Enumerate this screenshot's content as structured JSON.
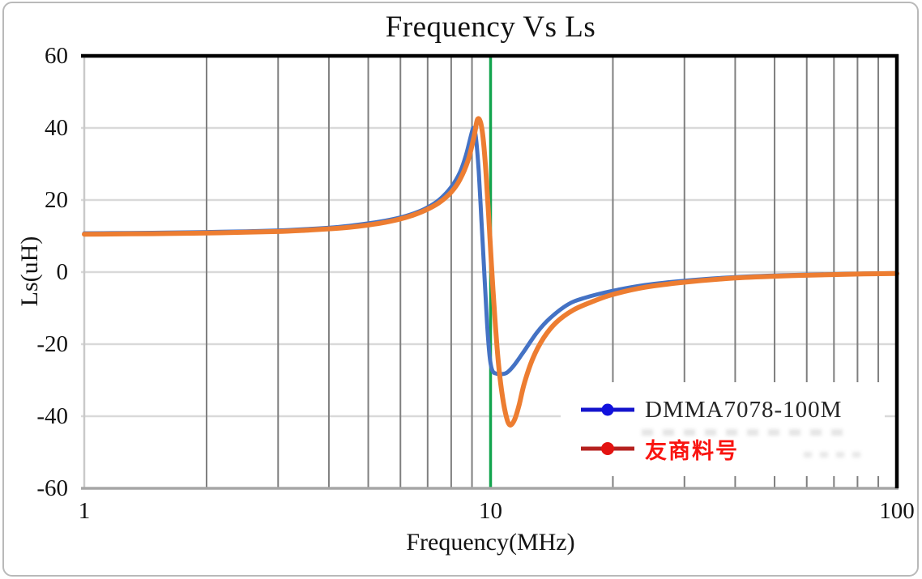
{
  "title": "Frequency Vs Ls",
  "colors": {
    "series_blue": "#4472c4",
    "series_orange": "#ed7d31",
    "marker_line_green": "#13a44e",
    "minor_gridline": "#7f7f7f",
    "major_gridline_light": "#d9d9d9",
    "left_edge": "#c9c9c9",
    "bottom_axis": "#a6a6a6",
    "top_right_border": "#000000"
  },
  "chart_data": {
    "type": "line",
    "title": "Frequency Vs Ls",
    "xlabel": "Frequency(MHz)",
    "ylabel": "Ls(uH)",
    "x_scale": "log",
    "xlim": [
      1,
      100
    ],
    "ylim": [
      -60,
      60
    ],
    "x_ticks": [
      "1",
      "10",
      "100"
    ],
    "x_tick_values": [
      1,
      10,
      100
    ],
    "y_ticks": [
      "60",
      "40",
      "20",
      "0",
      "-20",
      "-40",
      "-60"
    ],
    "y_tick_values": [
      60,
      40,
      20,
      0,
      -20,
      -40,
      -60
    ],
    "x_minor_gridlines": [
      2,
      3,
      4,
      5,
      6,
      7,
      8,
      9,
      20,
      30,
      40,
      50,
      60,
      70,
      80,
      90
    ],
    "y_gridlines": [
      40,
      20,
      0,
      -20,
      -40
    ],
    "grid": "on",
    "marker_line_x": 10,
    "legend_position": "lower-right",
    "legend": [
      {
        "label": "DMMA7078-100M",
        "line_color": "#1414cc",
        "marker_color": "#1111dd",
        "text_color": "#262626"
      },
      {
        "label": "友商料号",
        "line_color": "#b5211f",
        "marker_color": "#e31311",
        "text_color": "#f91410"
      }
    ],
    "series": [
      {
        "name": "DMMA7078-100M",
        "color": "#4472c4",
        "points": [
          [
            1,
            10.75
          ],
          [
            1.3,
            10.85
          ],
          [
            1.6,
            10.95
          ],
          [
            2,
            11.1
          ],
          [
            2.5,
            11.3
          ],
          [
            3,
            11.55
          ],
          [
            3.5,
            11.9
          ],
          [
            4,
            12.3
          ],
          [
            4.5,
            12.85
          ],
          [
            5,
            13.5
          ],
          [
            5.5,
            14.25
          ],
          [
            6,
            15.15
          ],
          [
            6.5,
            16.35
          ],
          [
            7,
            17.95
          ],
          [
            7.5,
            20.2
          ],
          [
            8,
            23.6
          ],
          [
            8.4,
            27.6
          ],
          [
            8.7,
            32.5
          ],
          [
            9,
            39.0
          ],
          [
            9.08,
            39.8
          ],
          [
            9.2,
            37.5
          ],
          [
            9.35,
            28
          ],
          [
            9.5,
            14
          ],
          [
            9.65,
            0
          ],
          [
            9.8,
            -14
          ],
          [
            9.95,
            -23.5
          ],
          [
            10.1,
            -27.3
          ],
          [
            10.35,
            -28.2
          ],
          [
            10.7,
            -28.3
          ],
          [
            11,
            -27.8
          ],
          [
            11.4,
            -26
          ],
          [
            12,
            -22.5
          ],
          [
            13,
            -16.8
          ],
          [
            14,
            -12.8
          ],
          [
            15.5,
            -9
          ],
          [
            17,
            -7.2
          ],
          [
            20,
            -5.2
          ],
          [
            24,
            -3.6
          ],
          [
            30,
            -2.4
          ],
          [
            40,
            -1.4
          ],
          [
            55,
            -0.8
          ],
          [
            75,
            -0.5
          ],
          [
            100,
            -0.3
          ]
        ]
      },
      {
        "name": "友商料号",
        "color": "#ed7d31",
        "points": [
          [
            1,
            10.5
          ],
          [
            1.3,
            10.6
          ],
          [
            1.6,
            10.7
          ],
          [
            2,
            10.85
          ],
          [
            2.5,
            11.05
          ],
          [
            3,
            11.25
          ],
          [
            3.5,
            11.6
          ],
          [
            4,
            12.0
          ],
          [
            4.5,
            12.45
          ],
          [
            5,
            13.05
          ],
          [
            5.5,
            13.8
          ],
          [
            6,
            14.75
          ],
          [
            6.5,
            15.95
          ],
          [
            7,
            17.45
          ],
          [
            7.5,
            19.4
          ],
          [
            8,
            22.2
          ],
          [
            8.4,
            25.6
          ],
          [
            8.8,
            31
          ],
          [
            9.1,
            37.5
          ],
          [
            9.28,
            42.3
          ],
          [
            9.45,
            41.5
          ],
          [
            9.6,
            36.5
          ],
          [
            9.75,
            27
          ],
          [
            9.9,
            15
          ],
          [
            10.05,
            2
          ],
          [
            10.25,
            -13
          ],
          [
            10.45,
            -25
          ],
          [
            10.65,
            -33
          ],
          [
            10.9,
            -39.5
          ],
          [
            11.15,
            -42.4
          ],
          [
            11.45,
            -41
          ],
          [
            11.75,
            -37
          ],
          [
            12.1,
            -31
          ],
          [
            12.7,
            -24
          ],
          [
            13.5,
            -18.3
          ],
          [
            14.5,
            -14
          ],
          [
            16,
            -10.5
          ],
          [
            18,
            -8
          ],
          [
            20,
            -6.2
          ],
          [
            24,
            -4.2
          ],
          [
            30,
            -2.8
          ],
          [
            40,
            -1.65
          ],
          [
            55,
            -1
          ],
          [
            75,
            -0.6
          ],
          [
            100,
            -0.4
          ]
        ]
      }
    ]
  }
}
